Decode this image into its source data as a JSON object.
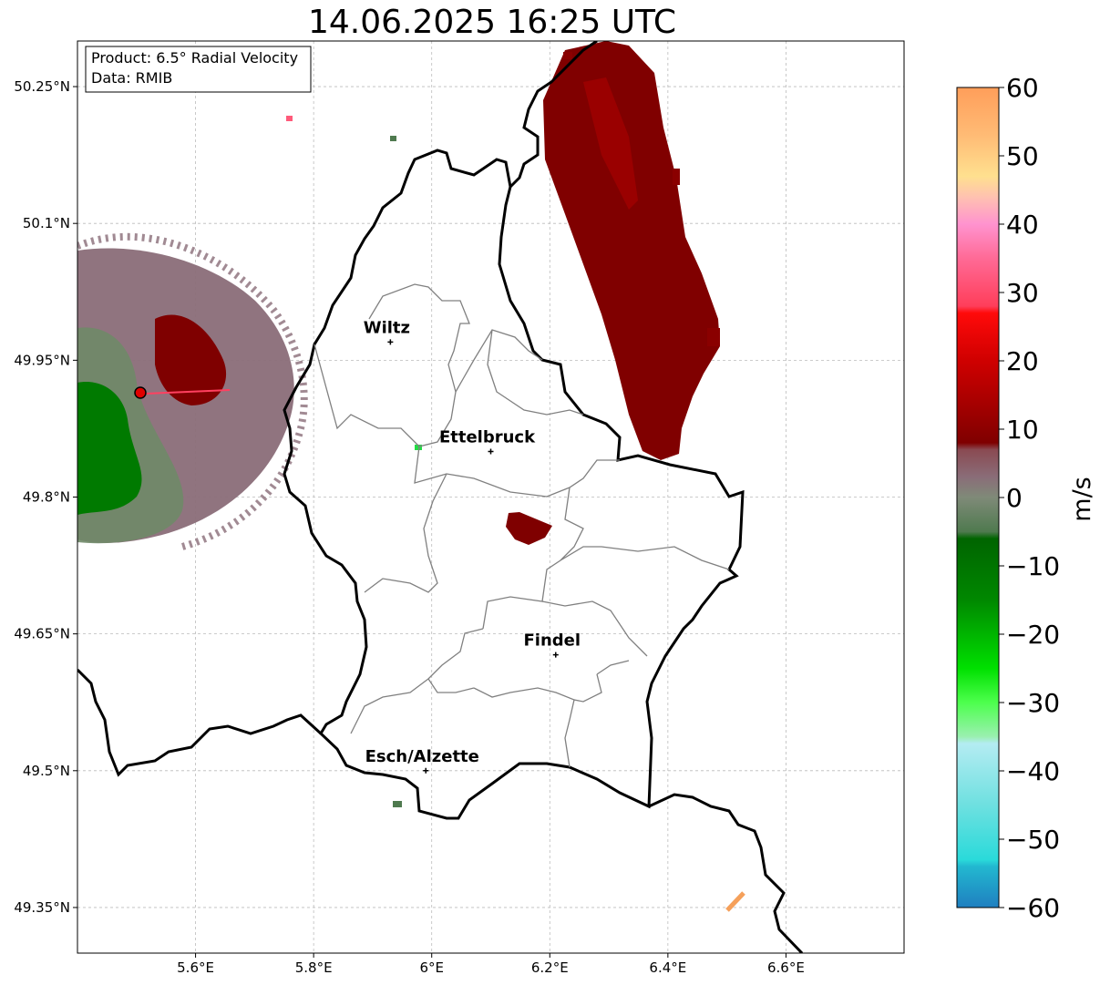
{
  "title": "14.06.2025 16:25 UTC",
  "info_box": {
    "line1": "Product: 6.5° Radial Velocity",
    "line2": "Data: RMIB"
  },
  "axes": {
    "lon_ticks": [
      5.6,
      5.8,
      6.0,
      6.2,
      6.4,
      6.6
    ],
    "lon_labels": [
      "5.6°E",
      "5.8°E",
      "6°E",
      "6.2°E",
      "6.4°E",
      "6.6°E"
    ],
    "lat_ticks": [
      50.25,
      50.1,
      49.95,
      49.8,
      49.65,
      49.5,
      49.35
    ],
    "lat_labels": [
      "50.25°N",
      "50.1°N",
      "49.95°N",
      "49.8°N",
      "49.65°N",
      "49.5°N",
      "49.35°N"
    ],
    "lon_range": [
      5.4,
      6.8
    ],
    "lat_range": [
      49.3,
      50.3
    ],
    "grid": true
  },
  "cities": [
    {
      "name": "Wiltz",
      "lon": 5.93,
      "lat": 49.97
    },
    {
      "name": "Ettelbruck",
      "lon": 6.1,
      "lat": 49.85
    },
    {
      "name": "Findel",
      "lon": 6.21,
      "lat": 49.627
    },
    {
      "name": "Esch/Alzette",
      "lon": 5.99,
      "lat": 49.5
    }
  ],
  "radar_site": {
    "lon": 5.505,
    "lat": 49.915
  },
  "colorbar": {
    "label": "m/s",
    "ticks": [
      60,
      50,
      40,
      30,
      20,
      10,
      0,
      -10,
      -20,
      -30,
      -40,
      -50,
      -60
    ],
    "tick_labels": [
      "60",
      "50",
      "40",
      "30",
      "20",
      "10",
      "0",
      "−10",
      "−20",
      "−30",
      "−40",
      "−50",
      "−60"
    ],
    "range": [
      -60,
      60
    ],
    "stops": [
      {
        "v": 60,
        "c": "#ff9e5a"
      },
      {
        "v": 53,
        "c": "#ffbb75"
      },
      {
        "v": 47,
        "c": "#ffe08f"
      },
      {
        "v": 44,
        "c": "#ffc2b0"
      },
      {
        "v": 40,
        "c": "#ff93cf"
      },
      {
        "v": 35,
        "c": "#ff6a96"
      },
      {
        "v": 28,
        "c": "#ff3e5a"
      },
      {
        "v": 27,
        "c": "#ff0a0a"
      },
      {
        "v": 20,
        "c": "#cf0000"
      },
      {
        "v": 14,
        "c": "#a80000"
      },
      {
        "v": 8,
        "c": "#7f0000"
      },
      {
        "v": 7,
        "c": "#8a4a52"
      },
      {
        "v": 3,
        "c": "#8a6d78"
      },
      {
        "v": 0,
        "c": "#7f8a78"
      },
      {
        "v": -5,
        "c": "#4f7a4f"
      },
      {
        "v": -6,
        "c": "#006400"
      },
      {
        "v": -15,
        "c": "#008800"
      },
      {
        "v": -25,
        "c": "#00e000"
      },
      {
        "v": -30,
        "c": "#4dff4d"
      },
      {
        "v": -35,
        "c": "#9af0b0"
      },
      {
        "v": -36,
        "c": "#b4ecf2"
      },
      {
        "v": -45,
        "c": "#6ee0e0"
      },
      {
        "v": -53,
        "c": "#2adada"
      },
      {
        "v": -54,
        "c": "#22b8d0"
      },
      {
        "v": -60,
        "c": "#1f7fc0"
      }
    ]
  },
  "colors": {
    "border": "#000000",
    "canton": "#808080",
    "grid": "#bbbbbb",
    "radar_red": "#7f0000",
    "radar_mauve": "#8a6d78",
    "radar_green": "#006400"
  }
}
